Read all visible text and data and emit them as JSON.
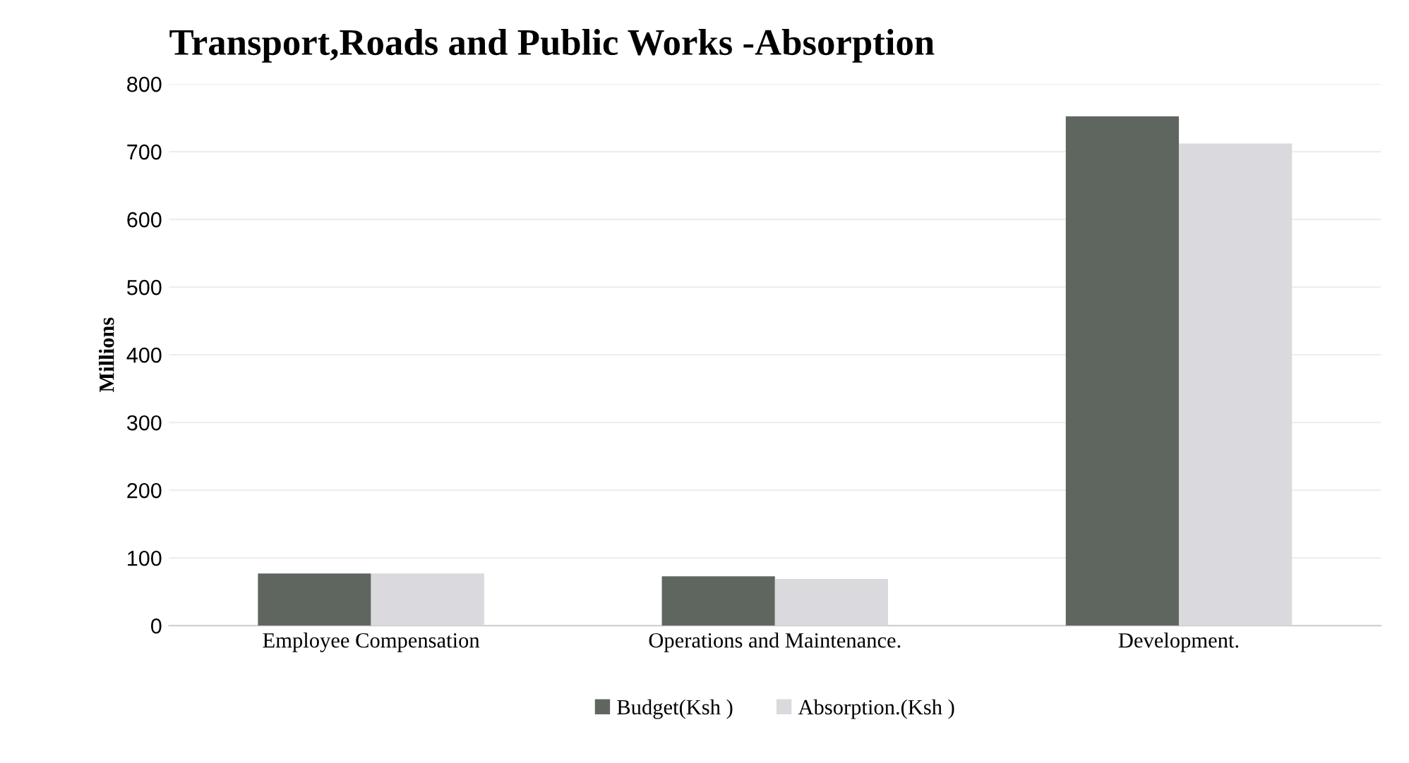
{
  "chart_data": {
    "type": "bar",
    "title": "Transport,Roads and Public Works -Absorption",
    "ylabel": "Millions",
    "categories": [
      "Employee Compensation",
      "Operations and Maintenance.",
      "Development."
    ],
    "series": [
      {
        "name": "Budget(Ksh )",
        "color": "#5f6660",
        "values": [
          77,
          73,
          752
        ]
      },
      {
        "name": "Absorption.(Ksh )",
        "color": "#d9d9de",
        "values": [
          77,
          69,
          712
        ]
      }
    ],
    "ylim": [
      0,
      800
    ],
    "yticks": [
      0,
      100,
      200,
      300,
      400,
      500,
      600,
      700,
      800
    ],
    "grid": "y",
    "legend": "bottom"
  }
}
